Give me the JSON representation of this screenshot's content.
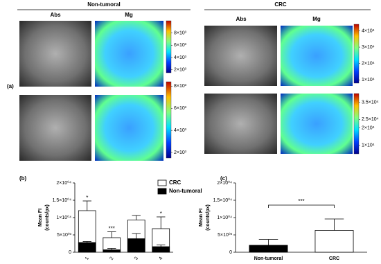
{
  "figure_label_a": "(a)",
  "groups": [
    {
      "title": "Non-tumoral",
      "col_labels": [
        "Abs",
        "Mg"
      ],
      "colorbars": [
        {
          "lim": [
            1500,
            10000
          ],
          "ticks": [
            {
              "value": 8000,
              "label": "8×10³"
            },
            {
              "value": 6000,
              "label": "6×10³"
            },
            {
              "value": 4000,
              "label": "4×10³"
            },
            {
              "value": 2000,
              "label": "2×10³"
            }
          ]
        },
        {
          "lim": [
            1500,
            8400
          ],
          "ticks": [
            {
              "value": 8000,
              "label": "8×10³"
            },
            {
              "value": 6000,
              "label": "6×10³"
            },
            {
              "value": 4000,
              "label": "4×10³"
            },
            {
              "value": 2000,
              "label": "2×10³"
            }
          ]
        }
      ]
    },
    {
      "title": "CRC",
      "col_labels": [
        "Abs",
        "Mg"
      ],
      "colorbars": [
        {
          "lim": [
            8000,
            44000
          ],
          "ticks": [
            {
              "value": 40000,
              "label": "4×10⁴"
            },
            {
              "value": 30000,
              "label": "3×10⁴"
            },
            {
              "value": 20000,
              "label": "2×10⁴"
            },
            {
              "value": 10000,
              "label": "1×10⁴"
            }
          ]
        },
        {
          "lim": [
            5000,
            40000
          ],
          "ticks": [
            {
              "value": 35000,
              "label": "3.5×10⁴"
            },
            {
              "value": 25000,
              "label": "2.5×10⁴"
            },
            {
              "value": 20000,
              "label": "2×10⁴"
            },
            {
              "value": 10000,
              "label": "1×10⁴"
            }
          ]
        }
      ]
    }
  ],
  "chart_data": [
    {
      "type": "bar",
      "panel_label": "(b)",
      "ylabel": [
        "Mean FI",
        "(counts/px)"
      ],
      "categories": [
        "1",
        "2",
        "3",
        "4"
      ],
      "series": [
        {
          "name": "CRC",
          "color": "#ffffff",
          "values": [
            12000,
            4200,
            9300,
            6800
          ],
          "errors": [
            2800,
            1700,
            1300,
            3400
          ]
        },
        {
          "name": "Non-tumoral",
          "color": "#000000",
          "values": [
            2800,
            700,
            3900,
            1600
          ],
          "errors": [
            300,
            400,
            1500,
            500
          ]
        }
      ],
      "significance": [
        "*",
        "***",
        null,
        "*"
      ],
      "ylim": [
        0,
        20000
      ],
      "yticks": [
        0,
        {
          "value": 5000,
          "label": "5×10⁰³"
        },
        {
          "value": 10000,
          "label": "1×10⁰⁴"
        },
        {
          "value": 15000,
          "label": "1.5×10⁰⁴"
        },
        {
          "value": 20000,
          "label": "2×10⁰⁴"
        }
      ]
    },
    {
      "type": "bar",
      "panel_label": "(c)",
      "ylabel": [
        "Mean FI",
        "(counts/px)"
      ],
      "categories": [
        "Non-tumoral",
        "CRC"
      ],
      "values": [
        2000,
        6300
      ],
      "errors": [
        1700,
        3300
      ],
      "colors": [
        "#000000",
        "#ffffff"
      ],
      "significance": "***",
      "ylim": [
        0,
        20000
      ],
      "yticks": [
        0,
        {
          "value": 5000,
          "label": "5×10⁰³"
        },
        {
          "value": 10000,
          "label": "1×10⁰⁴"
        },
        {
          "value": 15000,
          "label": "1.5×10⁰⁴"
        },
        {
          "value": 20000,
          "label": "2×10⁰⁴"
        }
      ]
    }
  ]
}
